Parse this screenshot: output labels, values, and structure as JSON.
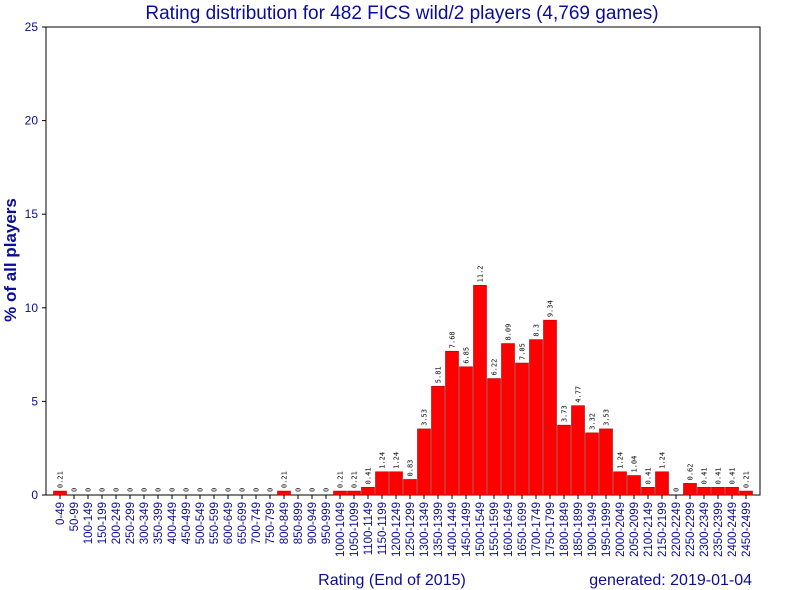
{
  "chart_data": {
    "type": "bar",
    "title": "Rating distribution for 482 FICS wild/2 players (4,769 games)",
    "xlabel": "Rating (End of 2015)",
    "ylabel": "% of all players",
    "footer": "generated: 2019-01-04",
    "ylim": [
      0,
      25
    ],
    "yticks": [
      0,
      5,
      10,
      15,
      20,
      25
    ],
    "grid": false,
    "bar_color": "#ff0000",
    "bar_edge_color": "#b00000",
    "text_color": "#0c0c9a",
    "categories": [
      "0-49",
      "50-99",
      "100-149",
      "150-199",
      "200-249",
      "250-299",
      "300-349",
      "350-399",
      "400-449",
      "450-499",
      "500-549",
      "550-599",
      "600-649",
      "650-699",
      "700-749",
      "750-799",
      "800-849",
      "850-899",
      "900-949",
      "950-999",
      "1000-1049",
      "1050-1099",
      "1100-1149",
      "1150-1199",
      "1200-1249",
      "1250-1299",
      "1300-1349",
      "1350-1399",
      "1400-1449",
      "1450-1499",
      "1500-1549",
      "1550-1599",
      "1600-1649",
      "1650-1699",
      "1700-1749",
      "1750-1799",
      "1800-1849",
      "1850-1899",
      "1900-1949",
      "1950-1999",
      "2000-2049",
      "2050-2099",
      "2100-2149",
      "2150-2199",
      "2200-2249",
      "2250-2299",
      "2300-2349",
      "2350-2399",
      "2400-2449",
      "2450-2499"
    ],
    "values": [
      0.21,
      0,
      0,
      0,
      0,
      0,
      0,
      0,
      0,
      0,
      0,
      0,
      0,
      0,
      0,
      0,
      0.21,
      0,
      0,
      0,
      0.21,
      0.21,
      0.41,
      1.24,
      1.24,
      0.83,
      3.53,
      5.81,
      7.68,
      6.85,
      11.2,
      6.22,
      8.09,
      7.05,
      8.3,
      9.34,
      3.73,
      4.77,
      3.32,
      3.53,
      1.24,
      1.04,
      0.41,
      1.24,
      0,
      0.62,
      0.41,
      0.41,
      0.41,
      0.21
    ]
  }
}
